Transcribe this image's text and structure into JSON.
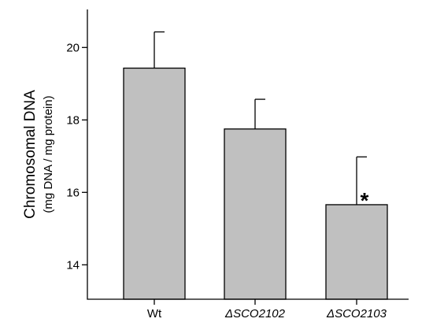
{
  "chart_data": {
    "type": "bar",
    "title": "",
    "ylabel": "Chromosomal DNA",
    "ylabel_sub": "(mg DNA / mg protein)",
    "xlabel": "",
    "categories": [
      "Wt",
      "ΔSCO2102",
      "ΔSCO2103"
    ],
    "italic_categories": [
      false,
      true,
      true
    ],
    "values": [
      19.43,
      17.75,
      15.66
    ],
    "error_upper": [
      20.43,
      18.57,
      16.98
    ],
    "annotations": [
      "",
      "",
      "*"
    ],
    "ylim": [
      13.05,
      21.05
    ],
    "yticks": [
      14,
      16,
      18,
      20
    ],
    "yticklabels": [
      "14",
      "16",
      "18",
      "20"
    ],
    "bar_color": "#c0c0c0",
    "edge_color": "#000000",
    "grid": false,
    "legend": "none"
  }
}
